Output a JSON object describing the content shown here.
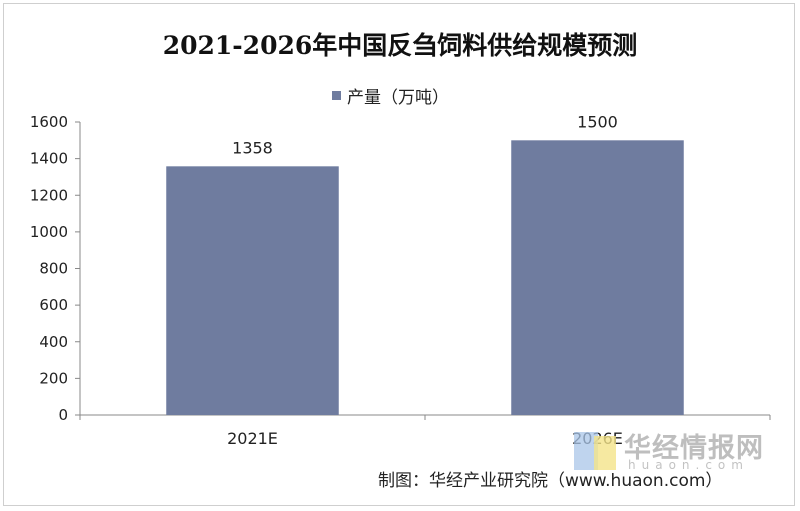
{
  "chart_data": {
    "type": "bar",
    "title": "2021-2026年中国反刍饲料供给规模预测",
    "categories": [
      "2021E",
      "2026E"
    ],
    "series": [
      {
        "name": "产量（万吨）",
        "values": [
          1358,
          1500
        ],
        "color": "#6f7c9f"
      }
    ],
    "data_labels": [
      "1358",
      "1500"
    ],
    "ylim": [
      0,
      1600
    ],
    "yticks": [
      0,
      200,
      400,
      600,
      800,
      1000,
      1200,
      1400,
      1600
    ],
    "grid": false,
    "legend_position": "top-center"
  },
  "source": "制图：华经产业研究院（www.huaon.com）",
  "watermark": {
    "text": "华经情报网",
    "subtext": "huaon.com"
  }
}
